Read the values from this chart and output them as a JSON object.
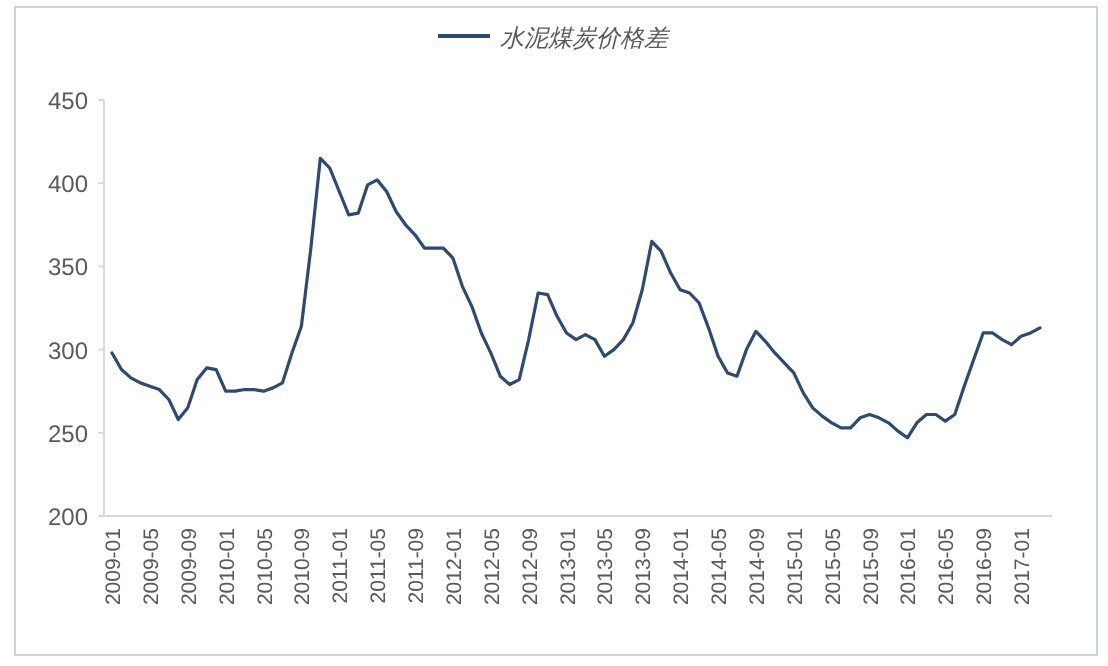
{
  "chart_data": {
    "type": "line",
    "categories": [
      "2009-01",
      null,
      null,
      null,
      "2009-05",
      null,
      null,
      null,
      "2009-09",
      null,
      null,
      null,
      "2010-01",
      null,
      null,
      null,
      "2010-05",
      null,
      null,
      null,
      "2010-09",
      null,
      null,
      null,
      "2011-01",
      null,
      null,
      null,
      "2011-05",
      null,
      null,
      null,
      "2011-09",
      null,
      null,
      null,
      "2012-01",
      null,
      null,
      null,
      "2012-05",
      null,
      null,
      null,
      "2012-09",
      null,
      null,
      null,
      "2013-01",
      null,
      null,
      null,
      "2013-05",
      null,
      null,
      null,
      "2013-09",
      null,
      null,
      null,
      "2014-01",
      null,
      null,
      null,
      "2014-05",
      null,
      null,
      null,
      "2014-09",
      null,
      null,
      null,
      "2015-01",
      null,
      null,
      null,
      "2015-05",
      null,
      null,
      null,
      "2015-09",
      null,
      null,
      null,
      "2016-01",
      null,
      null,
      null,
      "2016-05",
      null,
      null,
      null,
      "2016-09",
      null,
      null,
      null,
      "2017-01",
      null,
      null
    ],
    "series": [
      {
        "name": "水泥煤炭价格差",
        "color": "#2e4a6e",
        "values": [
          298,
          288,
          283,
          280,
          278,
          276,
          270,
          258,
          265,
          282,
          289,
          288,
          275,
          275,
          276,
          276,
          275,
          277,
          280,
          298,
          314,
          361,
          415,
          409,
          395,
          381,
          382,
          399,
          402,
          395,
          383,
          375,
          369,
          361,
          361,
          361,
          355,
          338,
          326,
          310,
          298,
          284,
          279,
          282,
          306,
          334,
          333,
          320,
          310,
          306,
          309,
          306,
          296,
          300,
          306,
          316,
          336,
          365,
          359,
          346,
          336,
          334,
          328,
          313,
          296,
          286,
          284,
          300,
          311,
          305,
          298,
          292,
          286,
          274,
          265,
          260,
          256,
          253,
          253,
          259,
          261,
          259,
          256,
          251,
          247,
          256,
          261,
          261,
          257,
          261,
          278,
          294,
          310,
          310,
          306,
          303,
          308,
          310,
          313
        ]
      }
    ],
    "ylim": [
      200,
      450
    ],
    "yticks": [
      200,
      250,
      300,
      350,
      400,
      450
    ],
    "grid": false,
    "legend": "top",
    "marker": "none",
    "line_style": "solid"
  }
}
